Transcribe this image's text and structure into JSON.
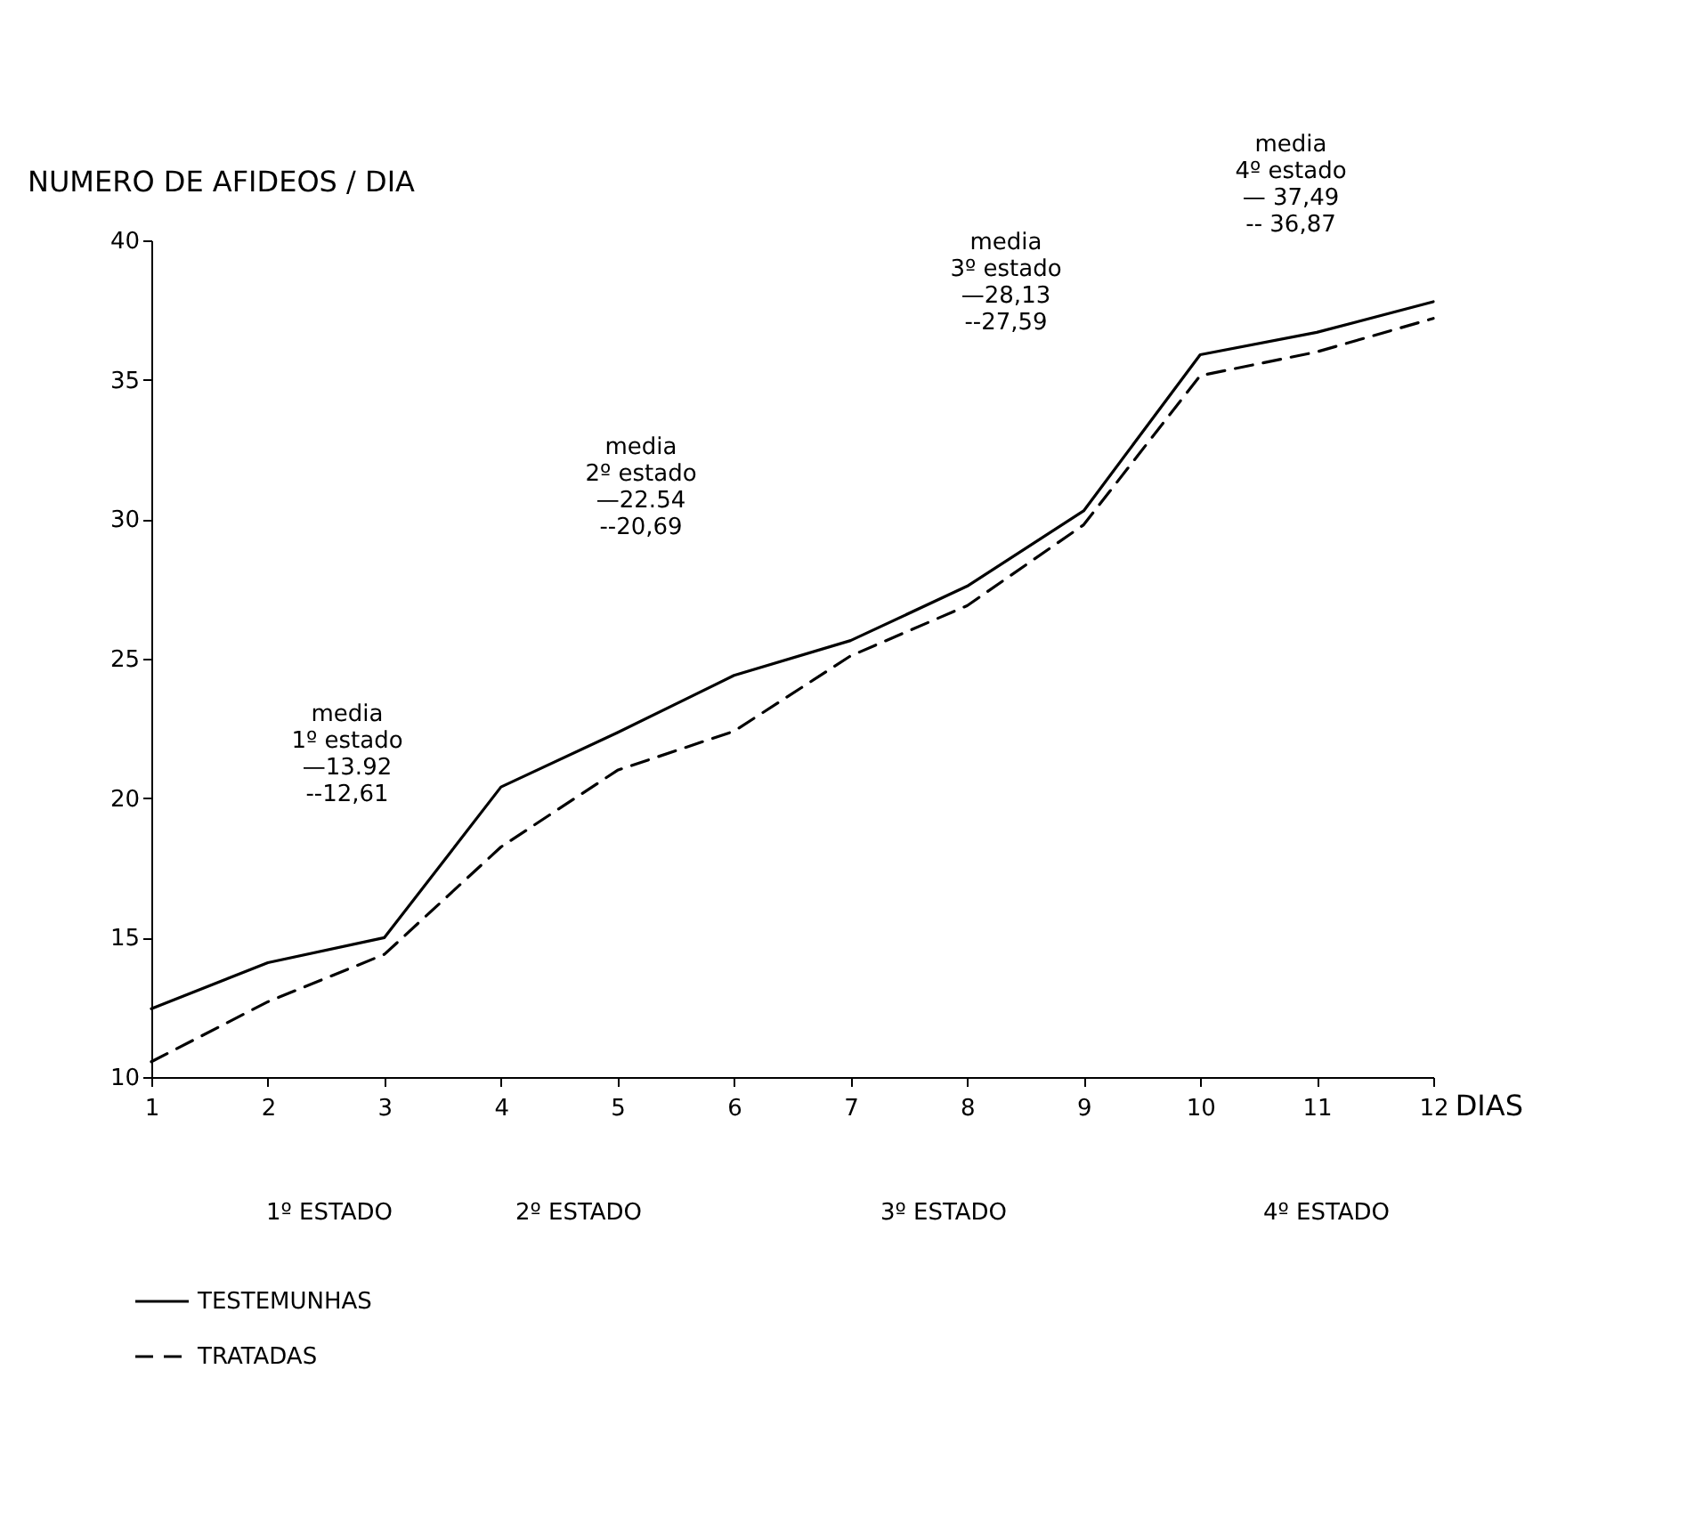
{
  "chart_data": {
    "type": "line",
    "xlabel": "DIAS",
    "ylabel": "NUMERO DE AFIDEOS / DIA",
    "x": [
      1,
      2,
      3,
      4,
      5,
      6,
      7,
      8,
      9,
      10,
      11,
      12
    ],
    "xlim": [
      1,
      12
    ],
    "xticks": [
      1,
      2,
      3,
      4,
      5,
      6,
      7,
      8,
      9,
      10,
      11,
      12
    ],
    "ylim": [
      10,
      40
    ],
    "yticks": [
      10,
      15,
      20,
      25,
      30,
      35,
      40
    ],
    "grid": false,
    "legend": "bottom left",
    "marker": "none",
    "series": [
      {
        "name": "TESTEMUNHAS",
        "color": "#000000",
        "line_style": "solid",
        "values": [
          12.45,
          14.1,
          15.0,
          20.4,
          22.35,
          24.4,
          25.65,
          27.6,
          30.3,
          35.9,
          36.7,
          37.8
        ]
      },
      {
        "name": "TRATADAS",
        "color": "#000000",
        "line_style": "dashed",
        "values": [
          10.55,
          12.7,
          14.4,
          18.25,
          21.0,
          22.4,
          25.1,
          26.9,
          29.8,
          35.15,
          36.0,
          37.2
        ]
      }
    ],
    "annotations": [
      "media\n1º estado\n—13.92\n--12,61",
      "media\n2º estado\n—22.54\n--20,69",
      "media\n3º estado\n—28,13\n--27,59",
      "media\n4º estado\n— 37,49\n-- 36,87",
      "1º ESTADO",
      "2º ESTADO",
      "3º ESTADO",
      "4º ESTADO"
    ]
  }
}
